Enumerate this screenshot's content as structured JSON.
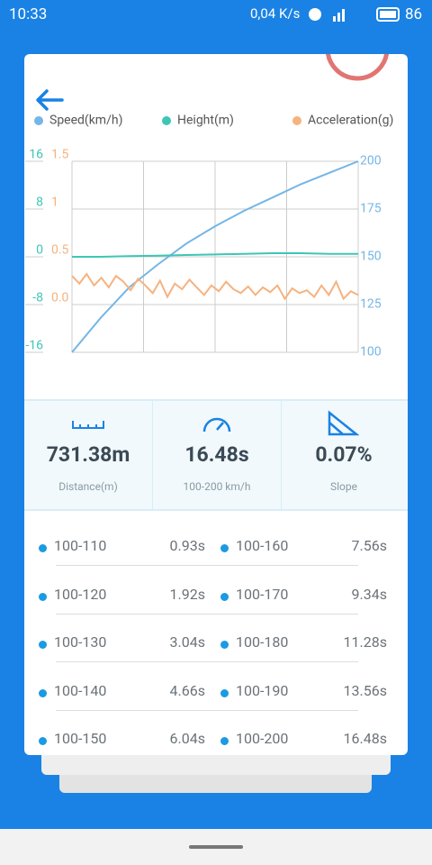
{
  "status_bar": {
    "time": "10:33",
    "speed": "0,04 K/s",
    "battery": "86"
  },
  "chart_data": {
    "type": "line",
    "series": [
      {
        "name": "Speed(km/h)",
        "color": "#74b6e6",
        "axis": "y2",
        "values": [
          100,
          118,
          134,
          146,
          157,
          166,
          174,
          181,
          188,
          194,
          200
        ]
      },
      {
        "name": "Height(m)",
        "color": "#3ec6b5",
        "axis": "y",
        "values": [
          0,
          0,
          0.1,
          0.2,
          0.3,
          0.4,
          0.5,
          0.6,
          0.6,
          0.5,
          0.5
        ]
      },
      {
        "name": "Acceleration(g)",
        "color": "#f6b27f",
        "axis": "y3",
        "values": [
          0.3,
          0.22,
          0.32,
          0.2,
          0.28,
          0.18,
          0.3,
          0.24,
          0.15,
          0.27,
          0.2,
          0.12,
          0.25,
          0.08,
          0.22,
          0.16,
          0.26,
          0.18,
          0.1,
          0.2,
          0.14,
          0.24,
          0.16,
          0.12,
          0.19,
          0.1,
          0.18,
          0.13,
          0.2,
          0.06,
          0.17,
          0.12,
          0.15,
          0.08,
          0.2,
          0.1,
          0.24,
          0.06,
          0.14,
          0.1
        ]
      }
    ],
    "ylim": [
      -16,
      16
    ],
    "yticks": [
      16,
      8,
      0,
      -8,
      -16
    ],
    "y3lim": [
      -0.5,
      1.5
    ],
    "y3ticks": [
      1.5,
      1,
      0.5,
      {
        "value": 0,
        "label": "0.0"
      }
    ],
    "y2lim": [
      100,
      200
    ],
    "y2ticks": [
      200,
      175,
      150,
      125,
      100
    ],
    "xgrid_lines": 4,
    "grid": true
  },
  "stats": [
    {
      "value": "731.38m",
      "label": "Distance(m)"
    },
    {
      "value": "16.48s",
      "label": "100-200 km/h"
    },
    {
      "value": "0.07%",
      "label": "Slope"
    }
  ],
  "results": [
    {
      "range": "100-110",
      "time": "0.93s"
    },
    {
      "range": "100-120",
      "time": "1.92s"
    },
    {
      "range": "100-130",
      "time": "3.04s"
    },
    {
      "range": "100-140",
      "time": "4.66s"
    },
    {
      "range": "100-150",
      "time": "6.04s"
    },
    {
      "range": "100-160",
      "time": "7.56s"
    },
    {
      "range": "100-170",
      "time": "9.34s"
    },
    {
      "range": "100-180",
      "time": "11.28s"
    },
    {
      "range": "100-190",
      "time": "13.56s"
    },
    {
      "range": "100-200",
      "time": "16.48s"
    }
  ]
}
